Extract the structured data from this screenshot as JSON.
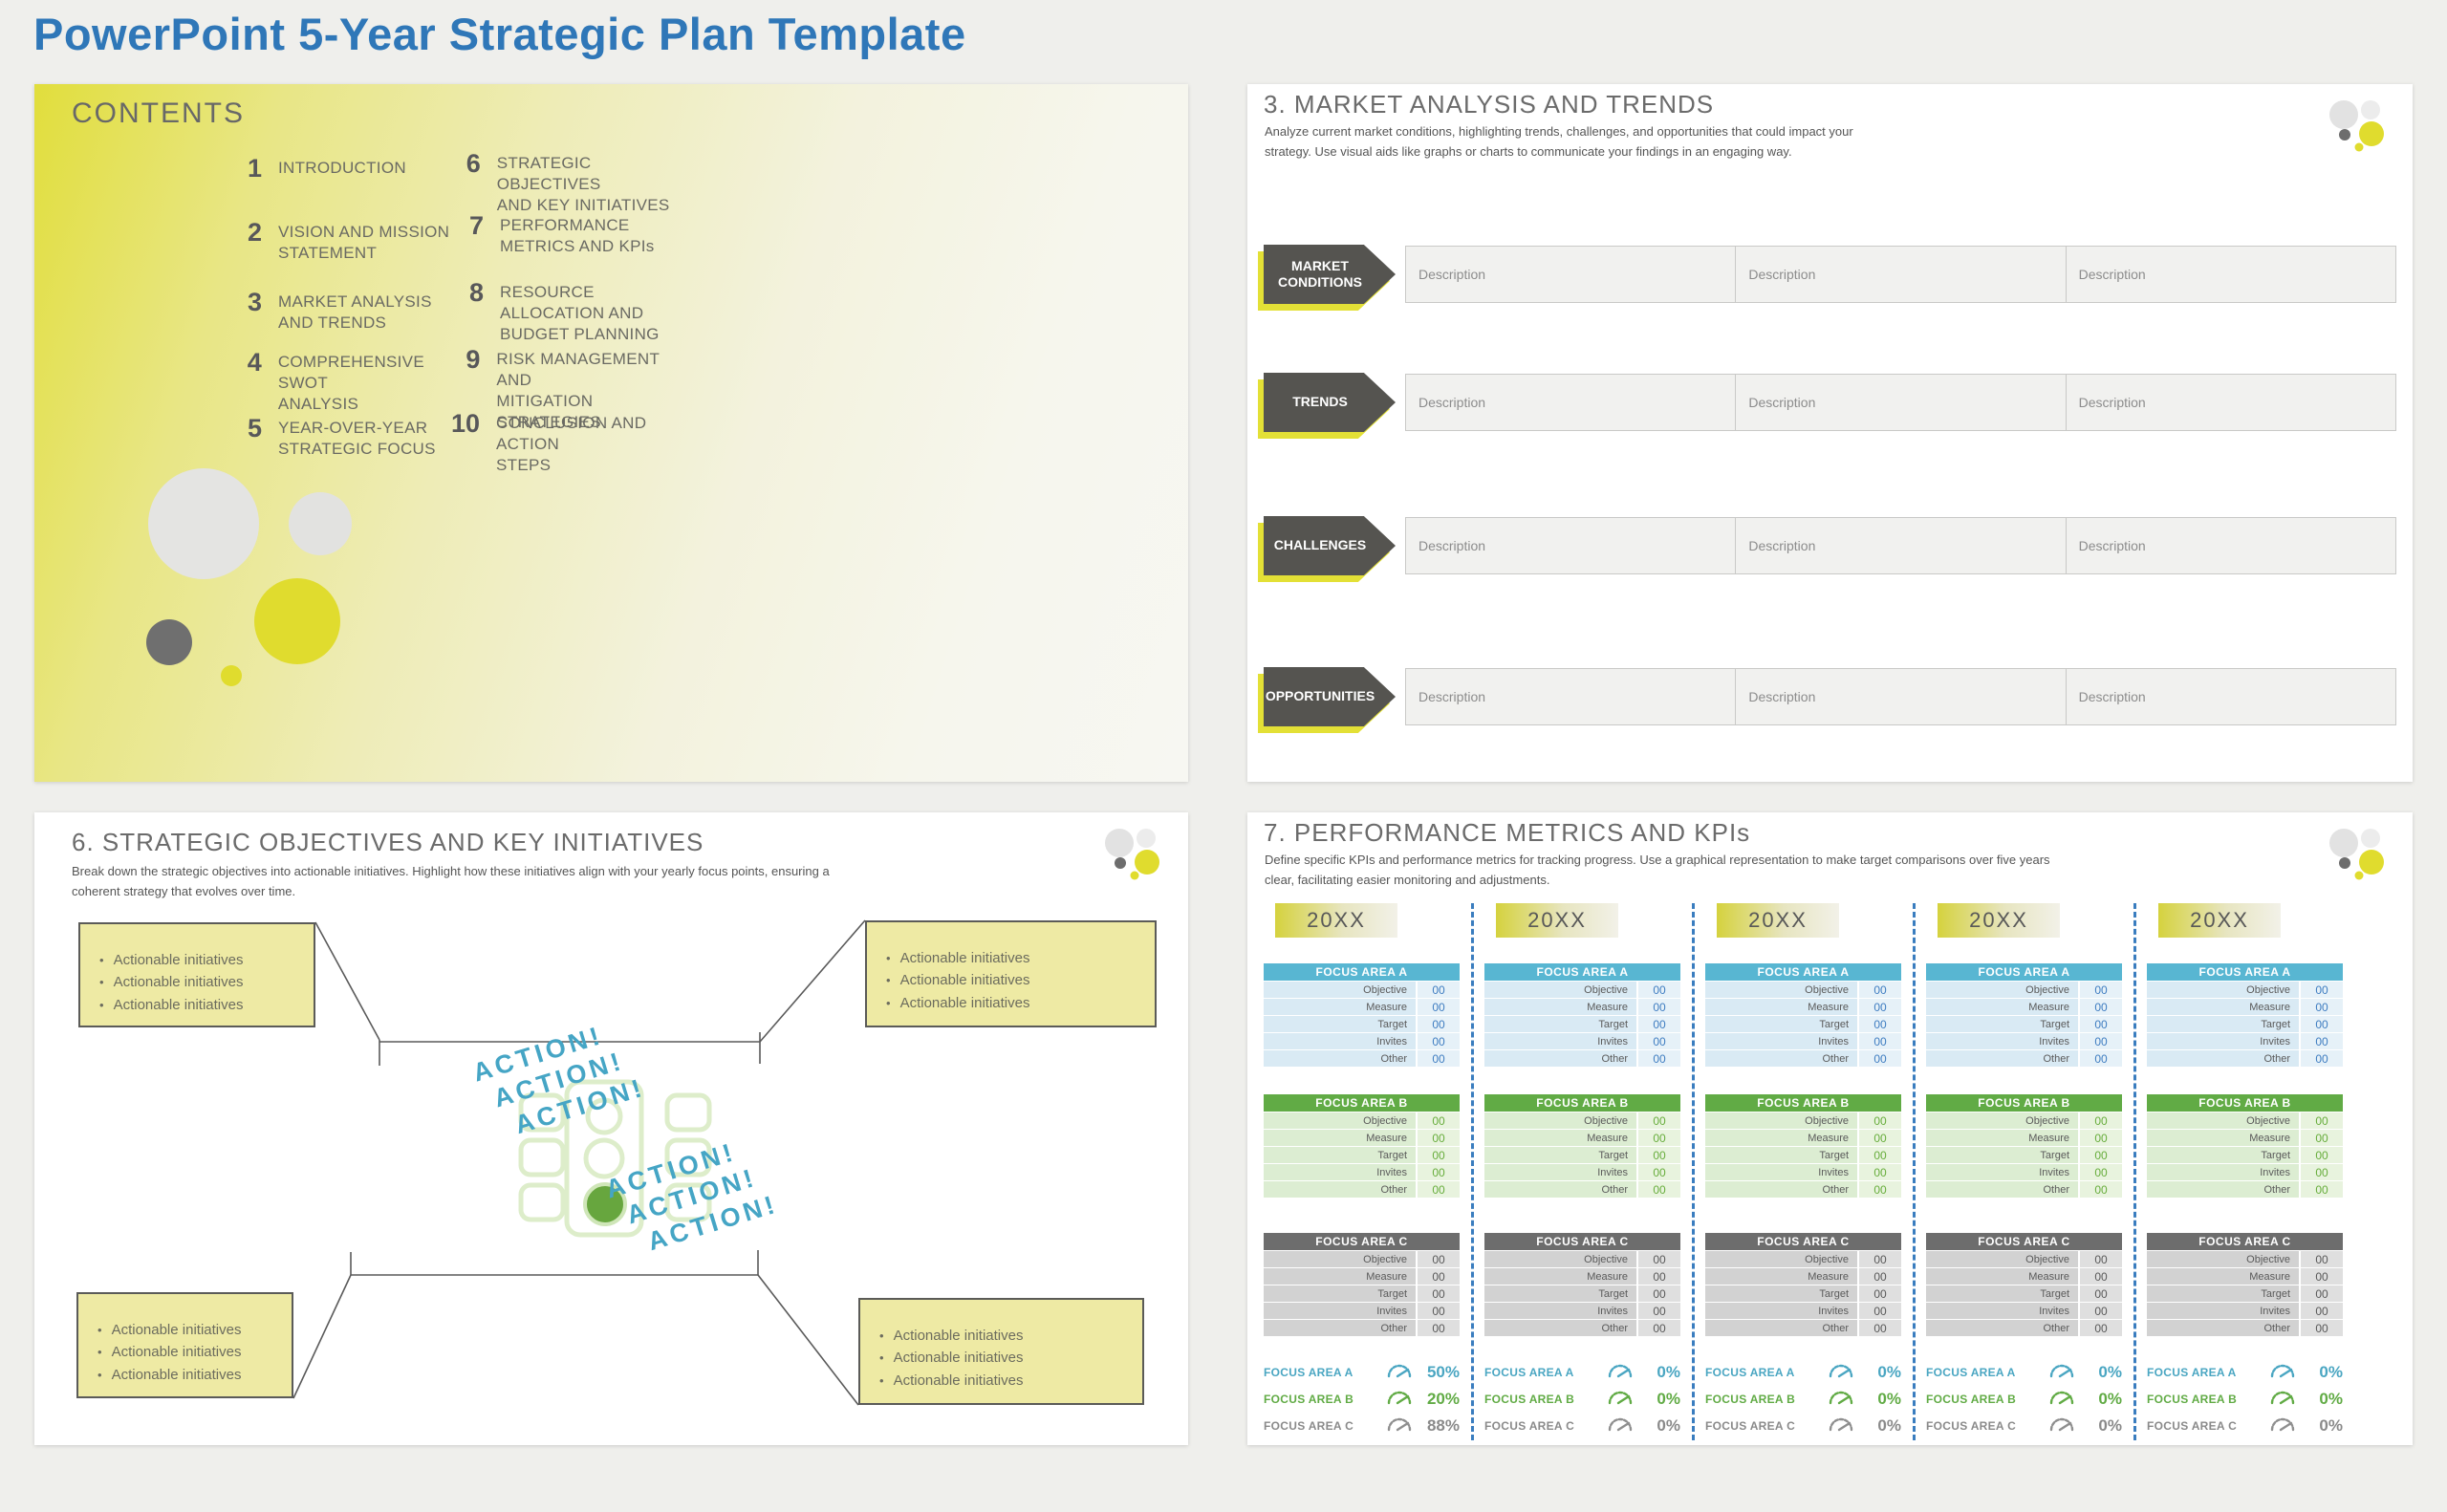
{
  "page_title": "PowerPoint 5-Year Strategic Plan Template",
  "colors": {
    "accent_blue": "#2f77b8",
    "accent_yellow": "#e3e036",
    "teal": "#4aa6c2",
    "green": "#61ab45",
    "dark_gray": "#555450"
  },
  "contents": {
    "heading": "CONTENTS",
    "left_items": [
      {
        "num": "1",
        "label": "INTRODUCTION"
      },
      {
        "num": "2",
        "label": "VISION AND MISSION\nSTATEMENT"
      },
      {
        "num": "3",
        "label": "MARKET ANALYSIS\nAND TRENDS"
      },
      {
        "num": "4",
        "label": "COMPREHENSIVE SWOT\nANALYSIS"
      },
      {
        "num": "5",
        "label": "YEAR-OVER-YEAR\nSTRATEGIC FOCUS"
      }
    ],
    "right_items": [
      {
        "num": "6",
        "label": "STRATEGIC OBJECTIVES\nAND KEY INITIATIVES"
      },
      {
        "num": "7",
        "label": "PERFORMANCE\nMETRICS AND KPIs"
      },
      {
        "num": "8",
        "label": "RESOURCE\nALLOCATION AND\nBUDGET PLANNING"
      },
      {
        "num": "9",
        "label": "RISK MANAGEMENT AND\nMITIGATION STRATEGIES"
      },
      {
        "num": "10",
        "label": "CONCLUSION AND ACTION\nSTEPS"
      }
    ]
  },
  "market": {
    "title": "3. MARKET ANALYSIS AND TRENDS",
    "description": "Analyze current market conditions, highlighting trends, challenges, and opportunities that could impact your\nstrategy. Use visual aids like graphs or charts to communicate your findings in an engaging way.",
    "row_labels": [
      "MARKET CONDITIONS",
      "TRENDS",
      "CHALLENGES",
      "OPPORTUNITIES"
    ],
    "cell_placeholder": "Description",
    "cells_per_row": 3
  },
  "objectives": {
    "title": "6. STRATEGIC OBJECTIVES AND KEY INITIATIVES",
    "description": "Break down the strategic objectives into actionable initiatives. Highlight how these initiatives align with your yearly focus points, ensuring a\ncoherent strategy that evolves over time.",
    "bullet_text": "Actionable initiatives",
    "bullets_per_box": 3,
    "box_count": 4,
    "action_word": "ACTION!",
    "action_repeats": 3
  },
  "kpi": {
    "title": "7. PERFORMANCE METRICS AND KPIs",
    "description": "Define specific KPIs and performance metrics for tracking progress. Use a graphical representation to make target comparisons over five years\nclear, facilitating easier monitoring and adjustments.",
    "year_label": "20XX",
    "row_labels": [
      "Objective",
      "Measure",
      "Target",
      "Invites",
      "Other"
    ],
    "cell_value": "00",
    "focus_areas": [
      {
        "name": "FOCUS AREA A",
        "variant": "blue"
      },
      {
        "name": "FOCUS AREA B",
        "variant": "green"
      },
      {
        "name": "FOCUS AREA C",
        "variant": "gray"
      }
    ],
    "columns": [
      {
        "summary": [
          {
            "area": "FOCUS AREA A",
            "pct": "50%"
          },
          {
            "area": "FOCUS AREA B",
            "pct": "20%"
          },
          {
            "area": "FOCUS AREA C",
            "pct": "88%"
          }
        ]
      },
      {
        "summary": [
          {
            "area": "FOCUS AREA A",
            "pct": "0%"
          },
          {
            "area": "FOCUS AREA B",
            "pct": "0%"
          },
          {
            "area": "FOCUS AREA C",
            "pct": "0%"
          }
        ]
      },
      {
        "summary": [
          {
            "area": "FOCUS AREA A",
            "pct": "0%"
          },
          {
            "area": "FOCUS AREA B",
            "pct": "0%"
          },
          {
            "area": "FOCUS AREA C",
            "pct": "0%"
          }
        ]
      },
      {
        "summary": [
          {
            "area": "FOCUS AREA A",
            "pct": "0%"
          },
          {
            "area": "FOCUS AREA B",
            "pct": "0%"
          },
          {
            "area": "FOCUS AREA C",
            "pct": "0%"
          }
        ]
      },
      {
        "summary": [
          {
            "area": "FOCUS AREA A",
            "pct": "0%"
          },
          {
            "area": "FOCUS AREA B",
            "pct": "0%"
          },
          {
            "area": "FOCUS AREA C",
            "pct": "0%"
          }
        ]
      }
    ]
  }
}
